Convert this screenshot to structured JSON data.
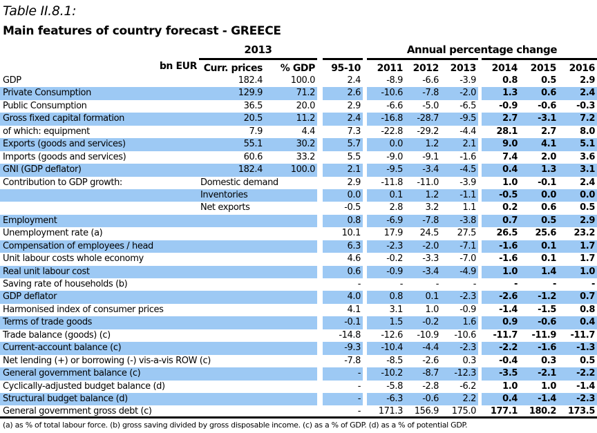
{
  "title": "Table II.8.1:",
  "subtitle": "Main features of country forecast - GREECE",
  "header": {
    "group_2013": "2013",
    "group_change": "Annual percentage change",
    "columns": [
      "bn EUR",
      "Curr. prices",
      "% GDP",
      "95-10",
      "2011",
      "2012",
      "2013",
      "2014",
      "2015",
      "2016"
    ]
  },
  "colors": {
    "band": "#9dc9f4"
  },
  "rows": [
    {
      "label": "GDP",
      "sub": "",
      "cur": "182.4",
      "pct": "100.0",
      "v": [
        "2.4",
        "-8.9",
        "-6.6",
        "-3.9",
        "0.8",
        "0.5",
        "2.9"
      ]
    },
    {
      "label": "Private Consumption",
      "sub": "",
      "cur": "129.9",
      "pct": "71.2",
      "v": [
        "2.6",
        "-10.6",
        "-7.8",
        "-2.0",
        "1.3",
        "0.6",
        "2.4"
      ]
    },
    {
      "label": "Public Consumption",
      "sub": "",
      "cur": "36.5",
      "pct": "20.0",
      "v": [
        "2.9",
        "-6.6",
        "-5.0",
        "-6.5",
        "-0.9",
        "-0.6",
        "-0.3"
      ]
    },
    {
      "label": "Gross fixed capital formation",
      "sub": "",
      "cur": "20.5",
      "pct": "11.2",
      "v": [
        "2.4",
        "-16.8",
        "-28.7",
        "-9.5",
        "2.7",
        "-3.1",
        "7.2"
      ]
    },
    {
      "label": "of which: equipment",
      "sub": "",
      "cur": "7.9",
      "pct": "4.4",
      "v": [
        "7.3",
        "-22.8",
        "-29.2",
        "-4.4",
        "28.1",
        "2.7",
        "8.0"
      ]
    },
    {
      "label": "Exports (goods and services)",
      "sub": "",
      "cur": "55.1",
      "pct": "30.2",
      "v": [
        "5.7",
        "0.0",
        "1.2",
        "2.1",
        "9.0",
        "4.1",
        "5.1"
      ]
    },
    {
      "label": "Imports (goods and services)",
      "sub": "",
      "cur": "60.6",
      "pct": "33.2",
      "v": [
        "5.5",
        "-9.0",
        "-9.1",
        "-1.6",
        "7.4",
        "2.0",
        "3.6"
      ]
    },
    {
      "label": "GNI (GDP deflator)",
      "sub": "",
      "cur": "182.4",
      "pct": "100.0",
      "v": [
        "2.1",
        "-9.5",
        "-3.4",
        "-4.5",
        "0.4",
        "1.3",
        "3.1"
      ]
    },
    {
      "label": "Contribution to GDP growth:",
      "sub": "Domestic demand",
      "cur": "",
      "pct": "",
      "v": [
        "2.9",
        "-11.8",
        "-11.0",
        "-3.9",
        "1.0",
        "-0.1",
        "2.4"
      ]
    },
    {
      "label": "",
      "sub": "Inventories",
      "cur": "",
      "pct": "",
      "v": [
        "0.0",
        "0.1",
        "1.2",
        "-1.1",
        "-0.5",
        "0.0",
        "0.0"
      ]
    },
    {
      "label": "",
      "sub": "Net exports",
      "cur": "",
      "pct": "",
      "v": [
        "-0.5",
        "2.8",
        "3.2",
        "1.1",
        "0.2",
        "0.6",
        "0.5"
      ]
    },
    {
      "label": "Employment",
      "sub": "",
      "cur": "",
      "pct": "",
      "v": [
        "0.8",
        "-6.9",
        "-7.8",
        "-3.8",
        "0.7",
        "0.5",
        "2.9"
      ]
    },
    {
      "label": "Unemployment rate (a)",
      "sub": "",
      "cur": "",
      "pct": "",
      "v": [
        "10.1",
        "17.9",
        "24.5",
        "27.5",
        "26.5",
        "25.6",
        "23.2"
      ]
    },
    {
      "label": "Compensation of employees / head",
      "sub": "",
      "cur": "",
      "pct": "",
      "v": [
        "6.3",
        "-2.3",
        "-2.0",
        "-7.1",
        "-1.6",
        "0.1",
        "1.7"
      ]
    },
    {
      "label": "Unit labour costs whole economy",
      "sub": "",
      "cur": "",
      "pct": "",
      "v": [
        "4.6",
        "-0.2",
        "-3.3",
        "-7.0",
        "-1.6",
        "0.1",
        "1.7"
      ]
    },
    {
      "label": "Real unit labour cost",
      "sub": "",
      "cur": "",
      "pct": "",
      "v": [
        "0.6",
        "-0.9",
        "-3.4",
        "-4.9",
        "1.0",
        "1.4",
        "1.0"
      ]
    },
    {
      "label": "Saving rate of households (b)",
      "sub": "",
      "cur": "",
      "pct": "",
      "v": [
        "-",
        "-",
        "-",
        "-",
        "-",
        "-",
        "-"
      ]
    },
    {
      "label": "GDP deflator",
      "sub": "",
      "cur": "",
      "pct": "",
      "v": [
        "4.0",
        "0.8",
        "0.1",
        "-2.3",
        "-2.6",
        "-1.2",
        "0.7"
      ]
    },
    {
      "label": "Harmonised index of consumer prices",
      "sub": "",
      "cur": "",
      "pct": "",
      "v": [
        "4.1",
        "3.1",
        "1.0",
        "-0.9",
        "-1.4",
        "-1.5",
        "0.8"
      ]
    },
    {
      "label": "Terms of trade goods",
      "sub": "",
      "cur": "",
      "pct": "",
      "v": [
        "-0.1",
        "1.5",
        "-0.2",
        "1.6",
        "0.9",
        "-0.6",
        "0.4"
      ]
    },
    {
      "label": "Trade balance (goods) (c)",
      "sub": "",
      "cur": "",
      "pct": "",
      "v": [
        "-14.8",
        "-12.6",
        "-10.9",
        "-10.6",
        "-11.7",
        "-11.9",
        "-11.7"
      ]
    },
    {
      "label": "Current-account balance (c)",
      "sub": "",
      "cur": "",
      "pct": "",
      "v": [
        "-9.3",
        "-10.4",
        "-4.4",
        "-2.3",
        "-2.2",
        "-1.6",
        "-1.3"
      ]
    },
    {
      "label": "Net lending (+) or borrowing (-) vis-a-vis ROW (c)",
      "sub": "",
      "cur": "",
      "pct": "",
      "v": [
        "-7.8",
        "-8.5",
        "-2.6",
        "0.3",
        "-0.4",
        "0.3",
        "0.5"
      ]
    },
    {
      "label": "General government balance (c)",
      "sub": "",
      "cur": "",
      "pct": "",
      "v": [
        "-",
        "-10.2",
        "-8.7",
        "-12.3",
        "-3.5",
        "-2.1",
        "-2.2"
      ]
    },
    {
      "label": "Cyclically-adjusted budget balance (d)",
      "sub": "",
      "cur": "",
      "pct": "",
      "v": [
        "-",
        "-5.8",
        "-2.8",
        "-6.2",
        "1.0",
        "1.0",
        "-1.4"
      ]
    },
    {
      "label": "Structural budget balance (d)",
      "sub": "",
      "cur": "",
      "pct": "",
      "v": [
        "-",
        "-6.3",
        "-0.6",
        "2.2",
        "0.4",
        "-1.4",
        "-2.3"
      ]
    },
    {
      "label": "General government gross debt (c)",
      "sub": "",
      "cur": "",
      "pct": "",
      "v": [
        "-",
        "171.3",
        "156.9",
        "175.0",
        "177.1",
        "180.2",
        "173.5"
      ]
    }
  ],
  "footnote": "(a) as % of total labour force. (b) gross saving divided by gross disposable income.  (c) as a % of  GDP. (d) as a % of  potential GDP."
}
